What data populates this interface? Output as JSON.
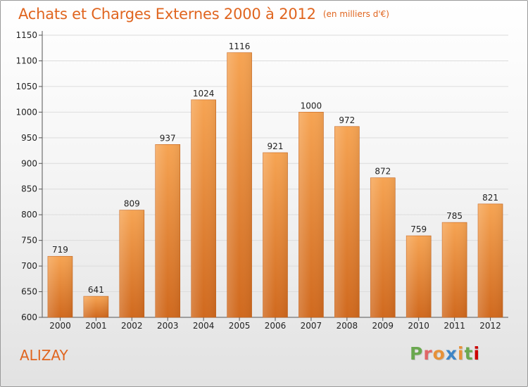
{
  "header": {
    "title": "Achats et Charges Externes 2000 à 2012",
    "unit": "(en milliers d'€)"
  },
  "footer": {
    "city": "ALIZAY",
    "logo": {
      "letters": [
        "P",
        "r",
        "o",
        "x",
        "i",
        "t",
        "i"
      ]
    }
  },
  "colors": {
    "title": "#e0651f",
    "bar_top": "#f6a453",
    "bar_bottom": "#d0691e",
    "gridline": "#dcdcdc",
    "logo_letters": [
      "#6aa84f",
      "#e06666",
      "#e69138",
      "#3d85c6",
      "#e69138",
      "#6aa84f",
      "#cc0000"
    ]
  },
  "chart_data": {
    "type": "bar",
    "categories": [
      "2000",
      "2001",
      "2002",
      "2003",
      "2004",
      "2005",
      "2006",
      "2007",
      "2008",
      "2009",
      "2010",
      "2011",
      "2012"
    ],
    "values": [
      719,
      641,
      809,
      937,
      1024,
      1116,
      921,
      1000,
      972,
      872,
      759,
      785,
      821
    ],
    "ylim": [
      600,
      1150
    ],
    "yticks": [
      600,
      650,
      700,
      750,
      800,
      850,
      900,
      950,
      1000,
      1050,
      1100,
      1150
    ],
    "grid": true,
    "data_labels": true
  }
}
